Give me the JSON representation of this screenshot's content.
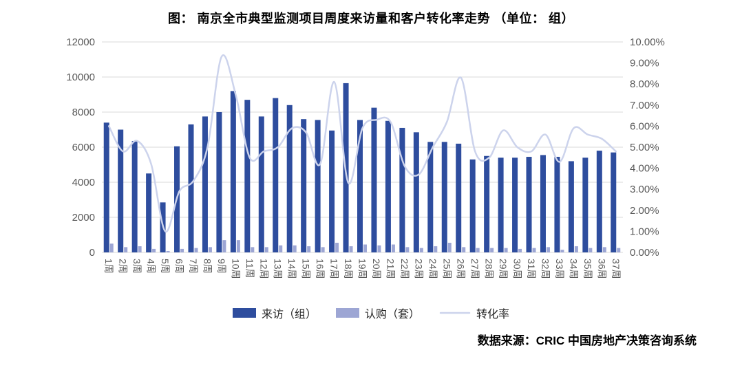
{
  "footer": {
    "source": "数据来源：CRIC 中国房地产决策咨询系统"
  },
  "chart_data": {
    "type": "combo",
    "title": "图： 南京全市典型监测项目周度来访量和客户转化率走势 （单位： 组）",
    "categories": [
      "1周",
      "2周",
      "3周",
      "4周",
      "5周",
      "6周",
      "7周",
      "8周",
      "9周",
      "10周",
      "11周",
      "12周",
      "13周",
      "14周",
      "15周",
      "16周",
      "17周",
      "18周",
      "19周",
      "20周",
      "21周",
      "22周",
      "23周",
      "24周",
      "25周",
      "26周",
      "27周",
      "28周",
      "29周",
      "30周",
      "31周",
      "32周",
      "33周",
      "34周",
      "35周",
      "36周",
      "37周"
    ],
    "series": [
      {
        "name": "来访（组）",
        "type": "bar",
        "axis": "left",
        "color": "#2e4d9e",
        "values": [
          7400,
          7000,
          6350,
          4500,
          2850,
          6050,
          7300,
          7750,
          8000,
          9200,
          8700,
          7750,
          8800,
          8400,
          7600,
          7550,
          6950,
          9650,
          7550,
          8250,
          7500,
          7100,
          6850,
          6300,
          6300,
          6200,
          5300,
          5500,
          5400,
          5400,
          5450,
          5550,
          5450,
          5200,
          5400,
          5800,
          5700
        ]
      },
      {
        "name": "认购（套）",
        "type": "bar",
        "axis": "left",
        "color": "#9da6d4",
        "values": [
          500,
          300,
          350,
          200,
          80,
          200,
          250,
          300,
          700,
          700,
          300,
          300,
          400,
          400,
          350,
          300,
          550,
          350,
          450,
          400,
          450,
          300,
          250,
          350,
          550,
          300,
          250,
          250,
          250,
          200,
          250,
          300,
          150,
          350,
          250,
          300,
          250
        ]
      },
      {
        "name": "转化率",
        "type": "line",
        "axis": "right",
        "color": "#ccd3ec",
        "values": [
          6.0,
          4.8,
          5.3,
          4.2,
          1.0,
          2.9,
          3.4,
          5.0,
          9.3,
          7.5,
          4.5,
          4.8,
          5.0,
          5.9,
          5.7,
          4.2,
          8.1,
          3.3,
          5.9,
          6.3,
          6.2,
          4.1,
          3.7,
          5.0,
          6.2,
          8.3,
          4.8,
          4.5,
          5.8,
          5.0,
          4.8,
          5.6,
          4.3,
          5.9,
          5.6,
          5.4,
          4.8
        ]
      }
    ],
    "left_axis": {
      "min": 0,
      "max": 12000,
      "step": 2000
    },
    "right_axis": {
      "min": 0,
      "max": 10,
      "step": 1,
      "format": "percent"
    },
    "grid": true,
    "legend_position": "bottom",
    "colors": {
      "grid": "#d9d9d9",
      "tick": "#595959"
    }
  }
}
